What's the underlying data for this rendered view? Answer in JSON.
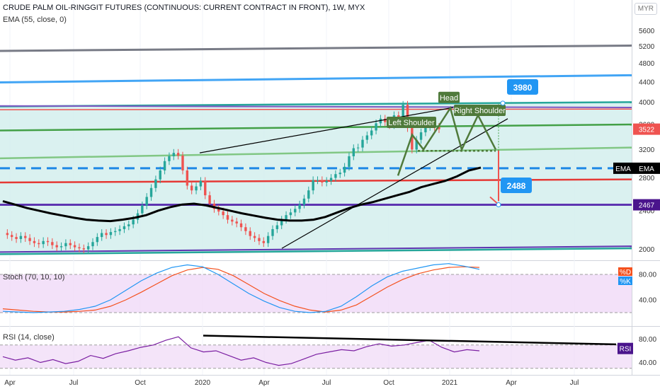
{
  "header": {
    "title": "CRUDE PALM OIL-RINGGIT FUTURES (CONTINUOUS: CURRENT CONTRACT IN FRONT), 1W, MYX",
    "ema_label": "EMA (55, close, 0)",
    "currency": "MYR"
  },
  "panes": {
    "stoch_label": "Stoch (70, 10, 10)",
    "rsi_label": "RSI (14, close)"
  },
  "colors": {
    "up": "#26a69a",
    "down": "#ef5350",
    "ema": "#000000",
    "channel_fill": "#d4efed",
    "stoch_k": "#2196f3",
    "stoch_d": "#f4511e",
    "rsi": "#7b1fa2",
    "osc_fill": "#f0d9f7",
    "pattern": "#4f7a3b"
  },
  "chart_data": [
    {
      "type": "candlestick",
      "title": "CRUDE PALM OIL-RINGGIT FUTURES (CONTINUOUS: CURRENT CONTRACT IN FRONT), 1W, MYX",
      "x_tick_labels": [
        "Apr",
        "Jul",
        "Oct",
        "2020",
        "Apr",
        "Jul",
        "Oct",
        "2021",
        "Apr",
        "Jul"
      ],
      "y_tick_labels": [
        "5600",
        "5200",
        "4800",
        "4400",
        "4000",
        "3600",
        "3200",
        "2800",
        "2400",
        "2000"
      ],
      "ylim": [
        1900,
        5700
      ],
      "y_scale": "log",
      "weekly_close": [
        2160,
        2140,
        2120,
        2100,
        2130,
        2110,
        2080,
        2060,
        2050,
        2080,
        2070,
        2040,
        2020,
        2030,
        2060,
        2040,
        2020,
        2010,
        2000,
        2030,
        2070,
        2120,
        2160,
        2140,
        2170,
        2180,
        2200,
        2230,
        2250,
        2300,
        2370,
        2460,
        2560,
        2670,
        2780,
        2900,
        3030,
        3100,
        3150,
        3110,
        2900,
        2700,
        2640,
        2690,
        2760,
        2580,
        2480,
        2420,
        2390,
        2350,
        2300,
        2280,
        2260,
        2220,
        2180,
        2130,
        2110,
        2080,
        2060,
        2130,
        2200,
        2240,
        2300,
        2350,
        2380,
        2420,
        2470,
        2540,
        2640,
        2770,
        2770,
        2740,
        2760,
        2800,
        2850,
        2870,
        2950,
        3100,
        3220,
        3230,
        3350,
        3420,
        3500,
        3620,
        3700,
        3640,
        3590,
        3760,
        3720,
        3950,
        3540,
        3200,
        3350,
        3470,
        3560,
        3650,
        3560,
        3522
      ],
      "ema55": [
        2510,
        2470,
        2430,
        2400,
        2370,
        2345,
        2320,
        2300,
        2290,
        2285,
        2300,
        2320,
        2350,
        2400,
        2440,
        2470,
        2480,
        2460,
        2430,
        2400,
        2370,
        2345,
        2320,
        2300,
        2290,
        2290,
        2300,
        2330,
        2380,
        2430,
        2470,
        2500,
        2540,
        2580,
        2620,
        2680,
        2720,
        2760,
        2820,
        2900,
        2940
      ],
      "current_price": 3522,
      "ema_value": 2930,
      "series": [
        {
          "name": "EMA",
          "value": 2930
        },
        {
          "name": "2467",
          "value": 2467
        }
      ],
      "annotations": [
        {
          "text": "Head",
          "price": 3890
        },
        {
          "text": "Left Shoulder",
          "price": 3600
        },
        {
          "text": "Right Shoulder",
          "price": 3810
        },
        {
          "text": "3980",
          "price": 3980
        },
        {
          "text": "2488",
          "price": 2488
        }
      ],
      "price_labels": [
        "3522",
        "EMA",
        "2467"
      ],
      "levels": {
        "channel_upper": [
          3920,
          4000
        ],
        "channel_lower": [
          1955,
          2010
        ],
        "neckline": 3200,
        "dashed_ema_level": 2930,
        "support": 2467,
        "red_line": [
          2740,
          2780
        ],
        "green_mid": [
          3500,
          3600
        ],
        "grey_top": [
          5090,
          5220
        ],
        "blue_top": [
          4390,
          4540
        ]
      }
    },
    {
      "type": "line",
      "title": "Stoch (70, 10, 10)",
      "y_tick_labels": [
        "80.00",
        "40.00"
      ],
      "ylim": [
        0,
        100
      ],
      "upper_band": 80,
      "lower_band": 20,
      "series": [
        {
          "name": "%K",
          "values": [
            22,
            21,
            20,
            21,
            22,
            25,
            30,
            40,
            55,
            70,
            82,
            91,
            95,
            92,
            80,
            65,
            50,
            38,
            28,
            22,
            20,
            22,
            30,
            45,
            62,
            76,
            85,
            90,
            95,
            97,
            93,
            88
          ]
        },
        {
          "name": "%D",
          "values": [
            26,
            24,
            22,
            21,
            21,
            22,
            24,
            30,
            40,
            52,
            65,
            78,
            87,
            91,
            88,
            78,
            64,
            50,
            39,
            30,
            24,
            21,
            24,
            32,
            46,
            60,
            72,
            81,
            87,
            91,
            92,
            91
          ]
        }
      ],
      "legend": [
        "%D",
        "%K"
      ]
    },
    {
      "type": "line",
      "title": "RSI (14, close)",
      "y_tick_labels": [
        "80.00",
        "40.00"
      ],
      "ylim": [
        20,
        100
      ],
      "upper_band": 70,
      "lower_band": 30,
      "series": [
        {
          "name": "RSI",
          "values": [
            50,
            44,
            48,
            40,
            45,
            38,
            42,
            52,
            47,
            55,
            60,
            66,
            70,
            78,
            84,
            65,
            58,
            60,
            52,
            44,
            48,
            40,
            35,
            38,
            46,
            54,
            58,
            62,
            60,
            67,
            72,
            68,
            70,
            74,
            78,
            66,
            58,
            62,
            60
          ]
        }
      ],
      "trendline": [
        86,
        71
      ],
      "legend": [
        "RSI"
      ]
    }
  ]
}
